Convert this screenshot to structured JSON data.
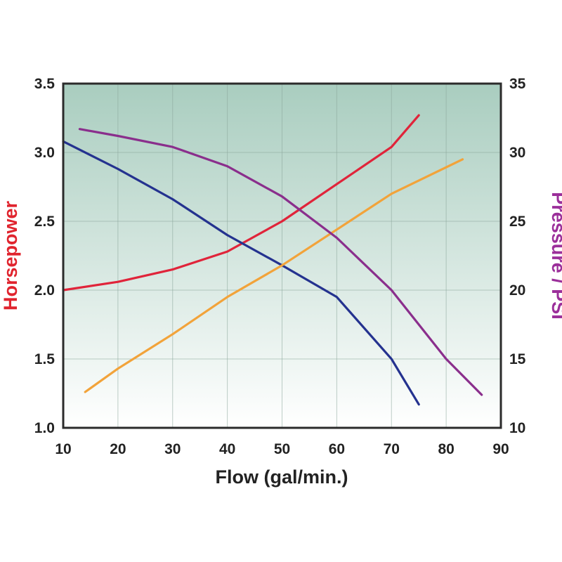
{
  "chart_data": {
    "type": "line",
    "xlabel": "Flow (gal/min.)",
    "ylabel_left": "Horsepower",
    "ylabel_right": "Pressure / PSI",
    "xlim": [
      10,
      90
    ],
    "xticks": [
      10,
      20,
      30,
      40,
      50,
      60,
      70,
      80,
      90
    ],
    "ylim_left": [
      1.0,
      3.5
    ],
    "yticks_left": [
      "1.0",
      "1.5",
      "2.0",
      "2.5",
      "3.0",
      "3.5"
    ],
    "ylim_right": [
      10,
      35
    ],
    "yticks_right": [
      "10",
      "15",
      "20",
      "25",
      "30",
      "35"
    ],
    "grid": true,
    "colors": {
      "left_axis_title": "#e0242e",
      "right_axis_title": "#9b2f9a",
      "background_top": "#a9cdbf",
      "background_bottom": "#ffffff"
    },
    "series": [
      {
        "axis": "left",
        "color": "#e0243a",
        "points": [
          [
            10,
            2.0
          ],
          [
            20,
            2.06
          ],
          [
            30,
            2.15
          ],
          [
            40,
            2.28
          ],
          [
            50,
            2.5
          ],
          [
            60,
            2.77
          ],
          [
            70,
            3.04
          ],
          [
            75,
            3.27
          ]
        ]
      },
      {
        "axis": "left",
        "color": "#24328f",
        "points": [
          [
            10,
            3.08
          ],
          [
            20,
            2.88
          ],
          [
            30,
            2.66
          ],
          [
            40,
            2.4
          ],
          [
            50,
            2.18
          ],
          [
            60,
            1.95
          ],
          [
            70,
            1.5
          ],
          [
            75,
            1.17
          ]
        ]
      },
      {
        "axis": "left",
        "color": "#f2a33a",
        "points": [
          [
            14,
            1.26
          ],
          [
            20,
            1.43
          ],
          [
            30,
            1.68
          ],
          [
            40,
            1.95
          ],
          [
            50,
            2.18
          ],
          [
            60,
            2.44
          ],
          [
            70,
            2.7
          ],
          [
            83,
            2.95
          ]
        ]
      },
      {
        "axis": "right",
        "color": "#8a2e8c",
        "points": [
          [
            13,
            31.7
          ],
          [
            20,
            31.2
          ],
          [
            30,
            30.4
          ],
          [
            40,
            29.0
          ],
          [
            50,
            26.8
          ],
          [
            60,
            23.8
          ],
          [
            70,
            20.0
          ],
          [
            80,
            15.0
          ],
          [
            86.5,
            12.4
          ]
        ]
      }
    ]
  }
}
